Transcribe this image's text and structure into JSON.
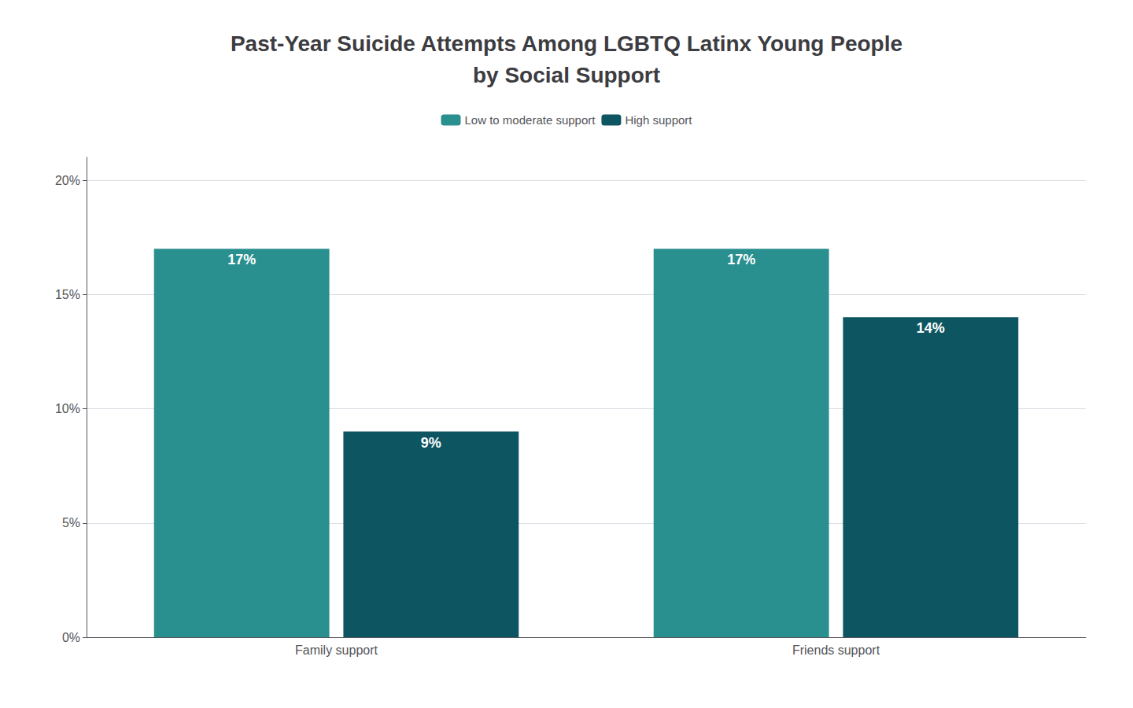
{
  "chart_data": {
    "type": "bar",
    "title": "Past-Year Suicide Attempts Among LGBTQ Latinx Young People\nby Social Support",
    "categories": [
      "Family support",
      "Friends support"
    ],
    "series": [
      {
        "name": "Low to moderate support",
        "color": "#2a8f8f",
        "values": [
          17,
          17
        ],
        "value_labels": [
          "17%",
          "17%"
        ]
      },
      {
        "name": "High support",
        "color": "#0d5560",
        "values": [
          9,
          14
        ],
        "value_labels": [
          "9%",
          "14%"
        ]
      }
    ],
    "ylim": [
      0,
      21
    ],
    "yticks": [
      {
        "value": 0,
        "label": "0%"
      },
      {
        "value": 5,
        "label": "5%"
      },
      {
        "value": 10,
        "label": "10%"
      },
      {
        "value": 15,
        "label": "15%"
      },
      {
        "value": 20,
        "label": "20%"
      }
    ],
    "grid": true,
    "legend": "top",
    "data_labels": true
  }
}
